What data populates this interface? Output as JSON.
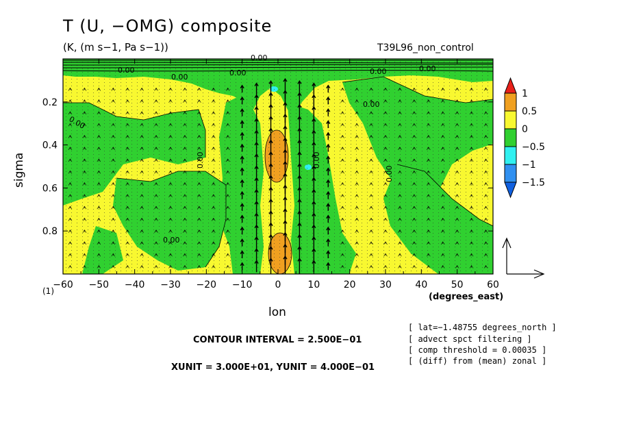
{
  "chart_data": {
    "type": "heatmap",
    "title": "T (U, −OMG) composite",
    "subtitle": "(K, (m s−1, Pa s−1))",
    "experiment": "T39L96_non_control",
    "xlabel": "lon",
    "xunits": "(degrees_east)",
    "ylabel": "sigma",
    "y_extra_label": "(1)",
    "xlim": [
      -60,
      60
    ],
    "ylim": [
      1.0,
      0.0
    ],
    "xticks": [
      -60,
      -50,
      -40,
      -30,
      -20,
      -10,
      0,
      10,
      20,
      30,
      40,
      50,
      60
    ],
    "xtick_labels": [
      "−60",
      "−50",
      "−40",
      "−30",
      "−20",
      "−10",
      "0",
      "10",
      "20",
      "30",
      "40",
      "50",
      "60"
    ],
    "yticks": [
      0.2,
      0.4,
      0.6,
      0.8
    ],
    "ytick_labels": [
      "0.2",
      "0.4",
      "0.6",
      "0.8"
    ],
    "colorbar": {
      "levels": [
        "1",
        "0.5",
        "0",
        "−0.5",
        "−1",
        "−1.5"
      ],
      "colors": [
        "#e8201a",
        "#f0a020",
        "#f8f830",
        "#30d030",
        "#30f0f0",
        "#3090f0",
        "#1060e0"
      ]
    },
    "contour_label": "0.00",
    "contour_interval_text": "CONTOUR INTERVAL = 2.500E−01",
    "unit_text": "XUNIT = 3.000E+01, YUNIT = 4.000E−01",
    "notes": [
      "[ lat=−1.48755 degrees_north ]",
      "[ advect spct filtering ]",
      "[ comp threshold = 0.00035 ]",
      "[ (diff) from (mean) zonal ]"
    ],
    "positive_regions": [
      {
        "lon": [
          -3,
          3
        ],
        "sigma": [
          0.33,
          0.55
        ],
        "value": 0.5
      },
      {
        "lon": [
          -3,
          3
        ],
        "sigma": [
          0.82,
          0.98
        ],
        "value": 0.5
      }
    ],
    "negative_regions": [
      {
        "lon": [
          -2,
          0
        ],
        "sigma": [
          0.13,
          0.15
        ],
        "value": -1.0
      },
      {
        "lon": [
          6,
          8
        ],
        "sigma": [
          0.49,
          0.51
        ],
        "value": -1.0
      }
    ],
    "grid": false,
    "legend_position": "right"
  }
}
